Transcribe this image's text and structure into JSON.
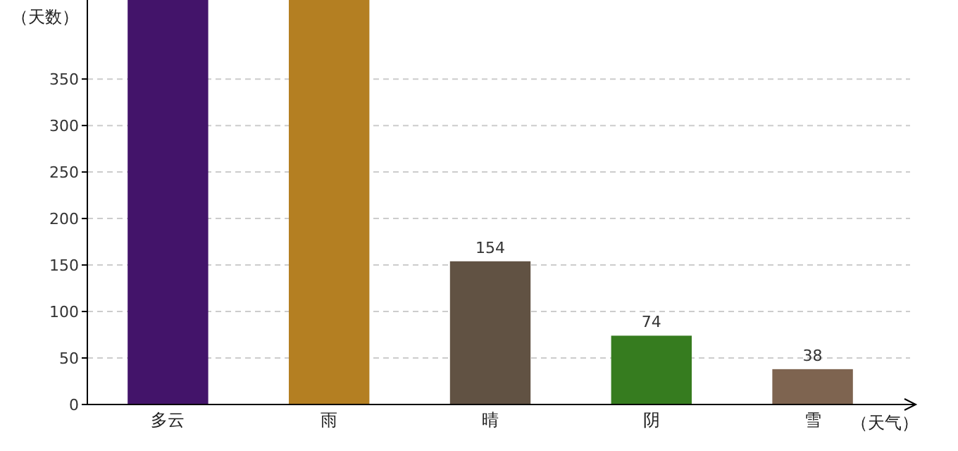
{
  "chart_data": {
    "type": "bar",
    "xlabel": "（天气）",
    "ylabel": "（天数）",
    "categories": [
      "多云",
      "雨",
      "晴",
      "阴",
      "雪"
    ],
    "values": [
      435,
      435,
      154,
      74,
      38
    ],
    "colors": [
      "#43146a",
      "#b47f22",
      "#615243",
      "#367c1f",
      "#7e6450"
    ],
    "value_labels": [
      null,
      null,
      "154",
      "74",
      "38"
    ],
    "ylim": [
      0,
      435
    ],
    "yticks": [
      0,
      50,
      100,
      150,
      200,
      250,
      300,
      350
    ],
    "grid": "y"
  }
}
